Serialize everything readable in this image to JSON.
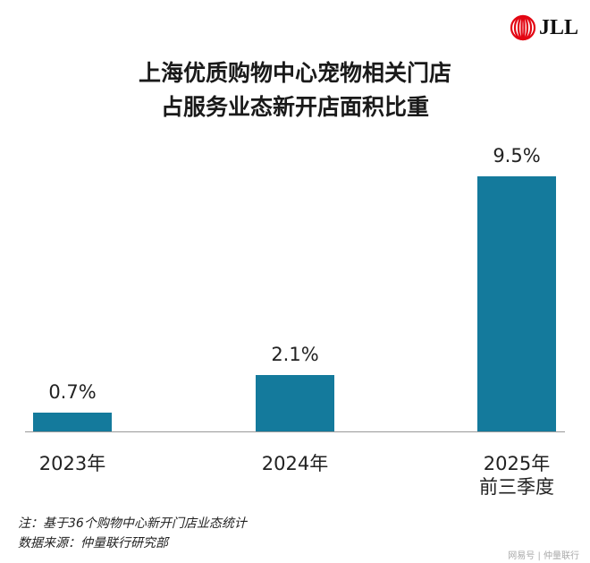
{
  "title_line1": "上海优质购物中心宠物相关门店",
  "title_line2": "占服务业态新开店面积比重",
  "logo_text": "JLL",
  "note": "注：基于36个购物中心新开门店业态统计",
  "source": "数据来源：仲量联行研究部",
  "watermark": "网易号 | 仲量联行",
  "colors": {
    "bar": "#147a9c",
    "logo_red": "#e30613"
  },
  "chart_data": {
    "type": "bar",
    "categories": [
      [
        "2023年"
      ],
      [
        "2024年"
      ],
      [
        "2025年",
        "前三季度"
      ]
    ],
    "values": [
      0.7,
      2.1,
      9.5
    ],
    "data_labels": [
      "0.7%",
      "2.1%",
      "9.5%"
    ],
    "ylim": [
      0,
      10
    ],
    "grid": false
  }
}
